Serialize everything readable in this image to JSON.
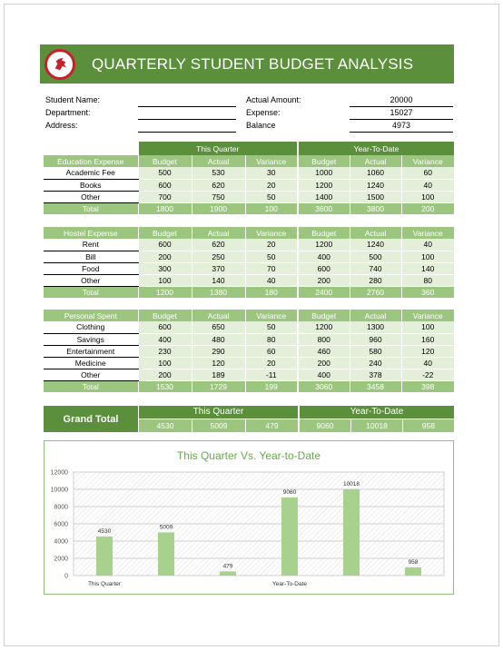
{
  "title": "QUARTERLY STUDENT BUDGET ANALYSIS",
  "info": {
    "student_name_label": "Student Name:",
    "department_label": "Department:",
    "address_label": "Address:",
    "actual_amount_label": "Actual Amount:",
    "actual_amount_value": "20000",
    "expense_label": "Expense:",
    "expense_value": "15027",
    "balance_label": "Balance",
    "balance_value": "4973"
  },
  "headers": {
    "this_quarter": "This Quarter",
    "year_to_date": "Year-To-Date",
    "budget": "Budget",
    "actual": "Actual",
    "variance": "Variance",
    "total": "Total"
  },
  "sections": [
    {
      "label": "Education Expense",
      "rows": [
        {
          "name": "Academic Fee",
          "v": [
            "500",
            "530",
            "30",
            "1000",
            "1060",
            "60"
          ]
        },
        {
          "name": "Books",
          "v": [
            "600",
            "620",
            "20",
            "1200",
            "1240",
            "40"
          ]
        },
        {
          "name": "Other",
          "v": [
            "700",
            "750",
            "50",
            "1400",
            "1500",
            "100"
          ]
        }
      ],
      "total": [
        "1800",
        "1900",
        "100",
        "3600",
        "3800",
        "200"
      ]
    },
    {
      "label": "Hostel Expense",
      "rows": [
        {
          "name": "Rent",
          "v": [
            "600",
            "620",
            "20",
            "1200",
            "1240",
            "40"
          ]
        },
        {
          "name": "Bill",
          "v": [
            "200",
            "250",
            "50",
            "400",
            "500",
            "100"
          ]
        },
        {
          "name": "Food",
          "v": [
            "300",
            "370",
            "70",
            "600",
            "740",
            "140"
          ]
        },
        {
          "name": "Other",
          "v": [
            "100",
            "140",
            "40",
            "200",
            "280",
            "80"
          ]
        }
      ],
      "total": [
        "1200",
        "1380",
        "180",
        "2400",
        "2760",
        "360"
      ]
    },
    {
      "label": "Personal Spent",
      "rows": [
        {
          "name": "Clothing",
          "v": [
            "600",
            "650",
            "50",
            "1200",
            "1300",
            "100"
          ]
        },
        {
          "name": "Savings",
          "v": [
            "400",
            "480",
            "80",
            "800",
            "960",
            "160"
          ]
        },
        {
          "name": "Entertainment",
          "v": [
            "230",
            "290",
            "60",
            "460",
            "580",
            "120"
          ]
        },
        {
          "name": "Medicine",
          "v": [
            "100",
            "120",
            "20",
            "200",
            "240",
            "40"
          ]
        },
        {
          "name": "Other",
          "v": [
            "200",
            "189",
            "-11",
            "400",
            "378",
            "-22"
          ]
        }
      ],
      "total": [
        "1530",
        "1729",
        "199",
        "3060",
        "3458",
        "398"
      ]
    }
  ],
  "grand_total": {
    "label": "Grand Total",
    "values": [
      "4530",
      "5009",
      "479",
      "9060",
      "10018",
      "958"
    ]
  },
  "colors": {
    "banner": "#5b8f3c",
    "header_light": "#9cc57f",
    "cell_fill": "#e4efda",
    "bar": "#a9d18e",
    "logo_ring": "#c8202b"
  },
  "chart_data": {
    "type": "bar",
    "title": "This Quarter Vs. Year-to-Date",
    "categories": [
      "This Quarter",
      "",
      "",
      "Year-To-Date",
      "",
      ""
    ],
    "values": [
      4530,
      5009,
      479,
      9060,
      10018,
      958
    ],
    "data_labels": [
      "4530",
      "5009",
      "479",
      "9060",
      "10018",
      "958"
    ],
    "ylim": [
      0,
      12000
    ],
    "yticks": [
      "0",
      "2000",
      "4000",
      "6000",
      "8000",
      "10000",
      "12000"
    ],
    "grid": true,
    "legend": "none"
  }
}
